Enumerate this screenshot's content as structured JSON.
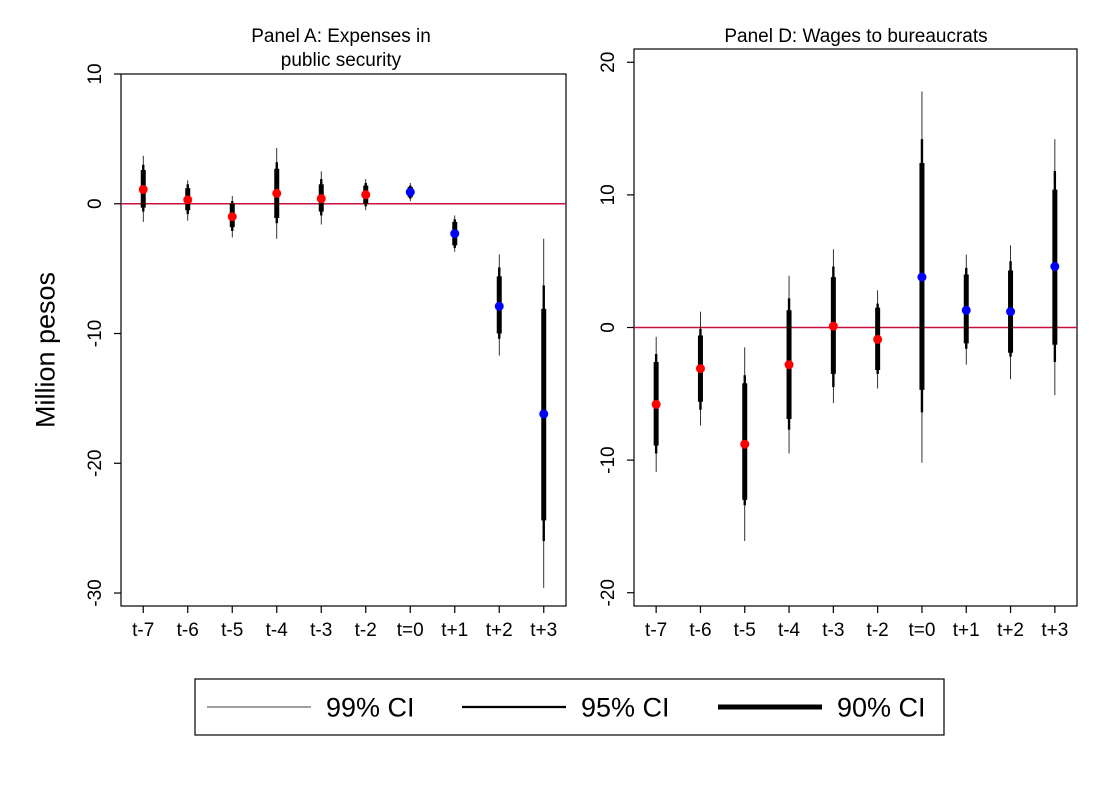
{
  "ylabel": "Million pesos",
  "colors": {
    "pre": "#ff0000",
    "post": "#0000ff",
    "zero_line": "#c8103e",
    "ci": "#000000"
  },
  "legend": [
    {
      "label": "99% CI",
      "level": "99"
    },
    {
      "label": "95% CI",
      "level": "95"
    },
    {
      "label": "90% CI",
      "level": "90"
    }
  ],
  "chart_data": [
    {
      "type": "scatter",
      "title_line1": "Panel A: Expenses in",
      "title_line2": "public security",
      "categories": [
        "t-7",
        "t-6",
        "t-5",
        "t-4",
        "t-3",
        "t-2",
        "t=0",
        "t+1",
        "t+2",
        "t+3"
      ],
      "ylim": [
        -31,
        10
      ],
      "yticks": [
        10,
        0,
        -10,
        -20,
        -30
      ],
      "period": [
        "pre",
        "pre",
        "pre",
        "pre",
        "pre",
        "pre",
        "post",
        "post",
        "post",
        "post"
      ],
      "estimate": [
        1.1,
        0.3,
        -1.0,
        0.8,
        0.4,
        0.7,
        0.9,
        -2.3,
        -7.9,
        -16.2
      ],
      "ci99": [
        [
          -1.4,
          3.7
        ],
        [
          -1.3,
          1.8
        ],
        [
          -2.6,
          0.6
        ],
        [
          -2.7,
          4.3
        ],
        [
          -1.6,
          2.5
        ],
        [
          -0.5,
          1.9
        ],
        [
          0.2,
          1.6
        ],
        [
          -3.7,
          -0.9
        ],
        [
          -11.7,
          -3.9
        ],
        [
          -29.6,
          -2.7
        ]
      ],
      "ci95": [
        [
          -0.6,
          3.0
        ],
        [
          -0.8,
          1.5
        ],
        [
          -2.1,
          0.2
        ],
        [
          -1.5,
          3.2
        ],
        [
          -0.9,
          1.9
        ],
        [
          -0.2,
          1.6
        ],
        [
          0.4,
          1.4
        ],
        [
          -3.4,
          -1.2
        ],
        [
          -10.4,
          -4.9
        ],
        [
          -26.0,
          -6.3
        ]
      ],
      "ci90": [
        [
          -0.3,
          2.6
        ],
        [
          -0.5,
          1.2
        ],
        [
          -1.8,
          0.0
        ],
        [
          -1.1,
          2.7
        ],
        [
          -0.6,
          1.5
        ],
        [
          0.0,
          1.4
        ],
        [
          0.5,
          1.3
        ],
        [
          -3.2,
          -1.4
        ],
        [
          -10.0,
          -5.6
        ],
        [
          -24.4,
          -8.1
        ]
      ]
    },
    {
      "type": "scatter",
      "title_line1": "Panel D: Wages to bureaucrats",
      "title_line2": "",
      "categories": [
        "t-7",
        "t-6",
        "t-5",
        "t-4",
        "t-3",
        "t-2",
        "t=0",
        "t+1",
        "t+2",
        "t+3"
      ],
      "ylim": [
        -21,
        21
      ],
      "yticks": [
        20,
        10,
        0,
        -10,
        -20
      ],
      "period": [
        "pre",
        "pre",
        "pre",
        "pre",
        "pre",
        "pre",
        "post",
        "post",
        "post",
        "post"
      ],
      "estimate": [
        -5.8,
        -3.1,
        -8.8,
        -2.8,
        0.1,
        -0.9,
        3.8,
        1.3,
        1.2,
        4.6
      ],
      "ci99": [
        [
          -10.9,
          -0.7
        ],
        [
          -7.4,
          1.2
        ],
        [
          -16.1,
          -1.5
        ],
        [
          -9.5,
          3.9
        ],
        [
          -5.7,
          5.9
        ],
        [
          -4.6,
          2.8
        ],
        [
          -10.2,
          17.8
        ],
        [
          -2.8,
          5.5
        ],
        [
          -3.9,
          6.2
        ],
        [
          -5.1,
          14.2
        ]
      ],
      "ci95": [
        [
          -9.5,
          -2.0
        ],
        [
          -6.2,
          -0.1
        ],
        [
          -13.4,
          -3.6
        ],
        [
          -7.7,
          2.2
        ],
        [
          -4.5,
          4.6
        ],
        [
          -3.5,
          1.8
        ],
        [
          -6.4,
          14.2
        ],
        [
          -1.6,
          4.5
        ],
        [
          -2.2,
          5.0
        ],
        [
          -2.6,
          11.8
        ]
      ],
      "ci90": [
        [
          -8.9,
          -2.6
        ],
        [
          -5.6,
          -0.6
        ],
        [
          -13.0,
          -4.2
        ],
        [
          -6.9,
          1.3
        ],
        [
          -3.5,
          3.8
        ],
        [
          -3.2,
          1.5
        ],
        [
          -4.7,
          12.4
        ],
        [
          -1.2,
          4.0
        ],
        [
          -1.9,
          4.3
        ],
        [
          -1.3,
          10.4
        ]
      ]
    }
  ]
}
